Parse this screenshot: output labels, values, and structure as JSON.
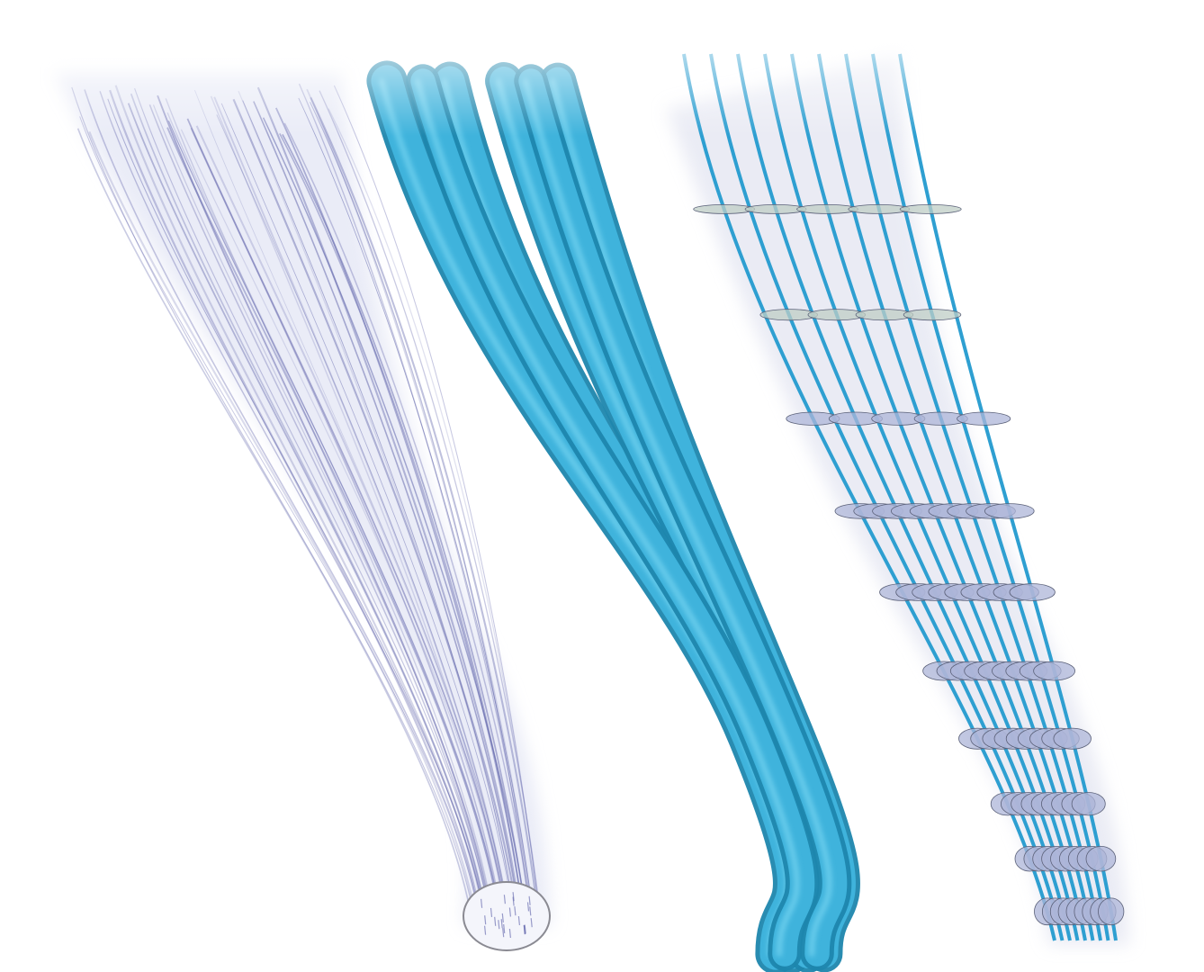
{
  "figure": {
    "panels": [
      {
        "id": "strand-density",
        "kind": "soft fiber bundle",
        "strand_color": "#5b5fa8",
        "halo_color": "#cfd2ec"
      },
      {
        "id": "tube-mesh",
        "kind": "solid tube bundle",
        "tube_color": "#3fb3dc",
        "highlight_color": "#8fe4fb",
        "shadow_color": "#1e86ad"
      },
      {
        "id": "guide-strands",
        "kind": "guide strands with cross-section disks",
        "strand_color": "#2e9fd1",
        "disk_color": "#aeb6d8",
        "disk_color_top": "#bfcdc6"
      }
    ]
  }
}
